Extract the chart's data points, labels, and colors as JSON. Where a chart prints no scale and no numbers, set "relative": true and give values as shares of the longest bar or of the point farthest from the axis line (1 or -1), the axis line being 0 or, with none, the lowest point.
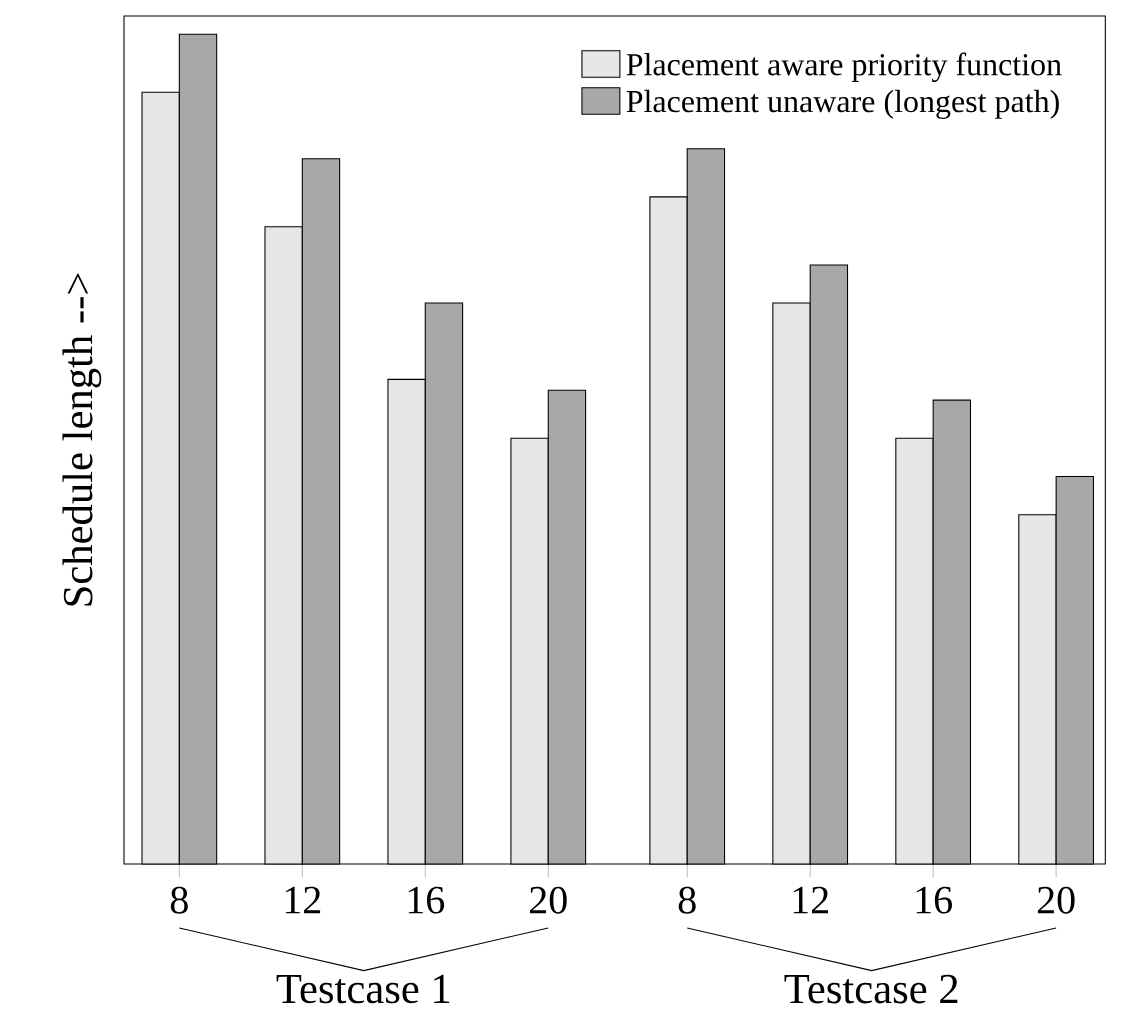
{
  "chart_data": {
    "type": "bar",
    "relative": true,
    "ylabel": "Schedule length -->",
    "categories": [
      "8",
      "12",
      "16",
      "20",
      "8",
      "12",
      "16",
      "20"
    ],
    "series": [
      {
        "name": "Placement aware priority function",
        "color": "#e6e6e6",
        "values": [
          0.93,
          0.768,
          0.584,
          0.513,
          0.804,
          0.676,
          0.513,
          0.421
        ]
      },
      {
        "name": "Placement unaware (longest path)",
        "color": "#a8a8a8",
        "values": [
          1,
          0.85,
          0.676,
          0.571,
          0.862,
          0.722,
          0.559,
          0.467
        ]
      }
    ],
    "annotations": [
      "Testcase 1",
      "Testcase 2"
    ],
    "legend": "top right",
    "tick_labels": "x"
  }
}
